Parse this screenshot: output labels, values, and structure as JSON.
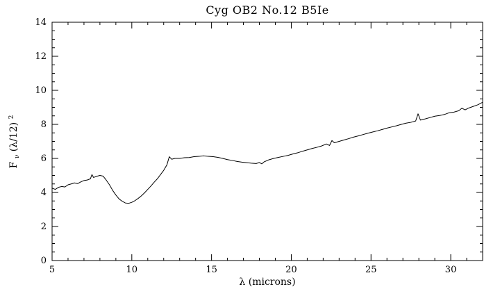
{
  "chart_data": {
    "type": "line",
    "title": "Cyg OB2 No.12 B5Ie",
    "xlabel": "λ (microns)",
    "ylabel": "Fν(λ/12)²",
    "ylabel_parts": {
      "base": "F",
      "sub": "ν",
      "mid": "(λ/12)",
      "sup": "2"
    },
    "xlim": [
      5,
      32
    ],
    "ylim": [
      0,
      14
    ],
    "xticks": [
      5,
      10,
      15,
      20,
      25,
      30
    ],
    "yticks": [
      0,
      2,
      4,
      6,
      8,
      10,
      12,
      14
    ],
    "x_minor_step": 1,
    "y_minor_step": 0.5,
    "grid": false,
    "legend": null,
    "background_color": "#ffffff",
    "line_color": "#000000",
    "axis_color": "#000000",
    "points": [
      [
        5.0,
        4.25
      ],
      [
        5.2,
        4.18
      ],
      [
        5.4,
        4.3
      ],
      [
        5.6,
        4.35
      ],
      [
        5.8,
        4.32
      ],
      [
        6.0,
        4.45
      ],
      [
        6.2,
        4.5
      ],
      [
        6.4,
        4.56
      ],
      [
        6.6,
        4.52
      ],
      [
        6.8,
        4.62
      ],
      [
        7.0,
        4.7
      ],
      [
        7.2,
        4.73
      ],
      [
        7.4,
        4.8
      ],
      [
        7.5,
        5.05
      ],
      [
        7.6,
        4.88
      ],
      [
        7.8,
        4.95
      ],
      [
        8.0,
        5.0
      ],
      [
        8.2,
        4.96
      ],
      [
        8.4,
        4.72
      ],
      [
        8.6,
        4.45
      ],
      [
        8.8,
        4.12
      ],
      [
        9.0,
        3.85
      ],
      [
        9.2,
        3.62
      ],
      [
        9.4,
        3.48
      ],
      [
        9.6,
        3.38
      ],
      [
        9.8,
        3.36
      ],
      [
        10.0,
        3.42
      ],
      [
        10.2,
        3.52
      ],
      [
        10.4,
        3.65
      ],
      [
        10.6,
        3.8
      ],
      [
        10.8,
        3.98
      ],
      [
        11.0,
        4.18
      ],
      [
        11.2,
        4.38
      ],
      [
        11.4,
        4.6
      ],
      [
        11.6,
        4.8
      ],
      [
        11.8,
        5.05
      ],
      [
        12.0,
        5.3
      ],
      [
        12.2,
        5.62
      ],
      [
        12.35,
        6.1
      ],
      [
        12.5,
        5.95
      ],
      [
        12.7,
        6.0
      ],
      [
        13.0,
        6.0
      ],
      [
        13.3,
        6.04
      ],
      [
        13.6,
        6.05
      ],
      [
        13.9,
        6.1
      ],
      [
        14.2,
        6.12
      ],
      [
        14.5,
        6.15
      ],
      [
        14.8,
        6.12
      ],
      [
        15.1,
        6.1
      ],
      [
        15.4,
        6.06
      ],
      [
        15.7,
        6.0
      ],
      [
        16.0,
        5.93
      ],
      [
        16.3,
        5.88
      ],
      [
        16.6,
        5.82
      ],
      [
        16.9,
        5.78
      ],
      [
        17.2,
        5.75
      ],
      [
        17.5,
        5.72
      ],
      [
        17.8,
        5.7
      ],
      [
        18.0,
        5.76
      ],
      [
        18.15,
        5.68
      ],
      [
        18.3,
        5.8
      ],
      [
        18.6,
        5.92
      ],
      [
        18.9,
        6.0
      ],
      [
        19.2,
        6.06
      ],
      [
        19.5,
        6.12
      ],
      [
        19.8,
        6.18
      ],
      [
        20.1,
        6.26
      ],
      [
        20.4,
        6.33
      ],
      [
        20.7,
        6.42
      ],
      [
        21.0,
        6.5
      ],
      [
        21.3,
        6.58
      ],
      [
        21.6,
        6.65
      ],
      [
        21.9,
        6.73
      ],
      [
        22.2,
        6.85
      ],
      [
        22.4,
        6.76
      ],
      [
        22.55,
        7.05
      ],
      [
        22.7,
        6.92
      ],
      [
        23.0,
        7.0
      ],
      [
        23.3,
        7.08
      ],
      [
        23.6,
        7.16
      ],
      [
        23.9,
        7.25
      ],
      [
        24.2,
        7.32
      ],
      [
        24.5,
        7.4
      ],
      [
        24.8,
        7.48
      ],
      [
        25.1,
        7.55
      ],
      [
        25.4,
        7.62
      ],
      [
        25.7,
        7.7
      ],
      [
        26.0,
        7.78
      ],
      [
        26.3,
        7.85
      ],
      [
        26.6,
        7.92
      ],
      [
        26.9,
        8.0
      ],
      [
        27.2,
        8.07
      ],
      [
        27.5,
        8.12
      ],
      [
        27.8,
        8.2
      ],
      [
        27.95,
        8.62
      ],
      [
        28.1,
        8.25
      ],
      [
        28.4,
        8.32
      ],
      [
        28.7,
        8.4
      ],
      [
        29.0,
        8.48
      ],
      [
        29.3,
        8.52
      ],
      [
        29.6,
        8.58
      ],
      [
        29.9,
        8.68
      ],
      [
        30.2,
        8.72
      ],
      [
        30.5,
        8.8
      ],
      [
        30.7,
        8.95
      ],
      [
        30.9,
        8.85
      ],
      [
        31.1,
        8.95
      ],
      [
        31.4,
        9.05
      ],
      [
        31.7,
        9.15
      ],
      [
        32.0,
        9.3
      ]
    ]
  }
}
